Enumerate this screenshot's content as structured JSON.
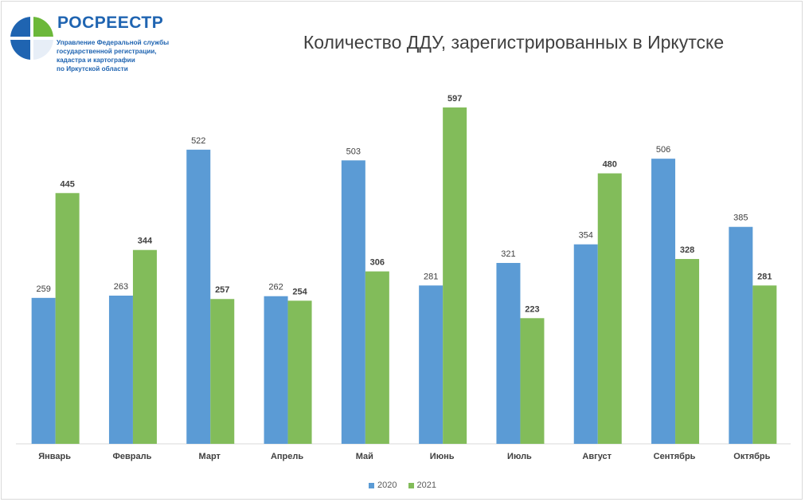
{
  "header": {
    "logo_title": "РОСРЕЕСТР",
    "logo_lines": [
      "Управление Федеральной службы",
      "государственной регистрации,",
      "кадастра и картографии",
      "по Иркутской области"
    ]
  },
  "colors": {
    "series_2020": "#5b9bd5",
    "series_2021": "#82bc5a",
    "logo_blue": "#1f64b1",
    "logo_green": "#6cb83a",
    "axis": "#d9d9d9"
  },
  "chart_data": {
    "type": "bar",
    "title": "Количество ДДУ, зарегистрированных в Иркутске",
    "xlabel": "",
    "ylabel": "",
    "ylim": [
      0,
      650
    ],
    "grid": false,
    "legend_position": "bottom",
    "categories": [
      "Январь",
      "Февраль",
      "Март",
      "Апрель",
      "Май",
      "Июнь",
      "Июль",
      "Август",
      "Сентябрь",
      "Октябрь"
    ],
    "series": [
      {
        "name": "2020",
        "values": [
          259,
          263,
          522,
          262,
          503,
          281,
          321,
          354,
          506,
          385
        ]
      },
      {
        "name": "2021",
        "values": [
          445,
          344,
          257,
          254,
          306,
          597,
          223,
          480,
          328,
          281
        ]
      }
    ]
  }
}
